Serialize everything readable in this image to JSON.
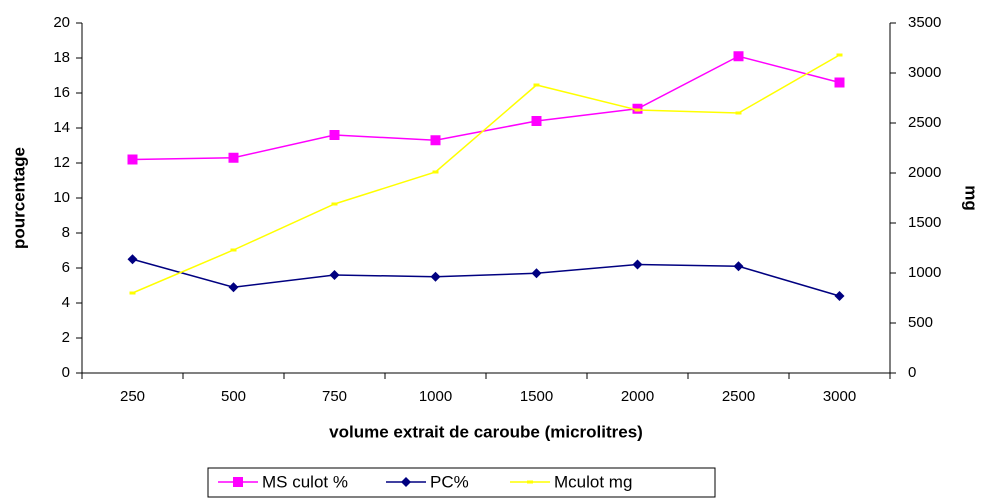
{
  "chart_data": {
    "type": "line",
    "x_label": "volume extrait de caroube (microlitres)",
    "y_label": "pourcentage",
    "y2_label": "mg",
    "categories": [
      "250",
      "500",
      "750",
      "1000",
      "1500",
      "2000",
      "2500",
      "3000"
    ],
    "series": [
      {
        "name": "MS culot %",
        "color": "#ff00ff",
        "marker": "square",
        "values": [
          12.2,
          12.3,
          13.6,
          13.3,
          14.4,
          15.1,
          18.1,
          16.6
        ]
      },
      {
        "name": "PC%",
        "color": "#000080",
        "marker": "diamond",
        "values": [
          6.5,
          4.9,
          5.6,
          5.5,
          5.7,
          6.2,
          6.1,
          4.4
        ]
      },
      {
        "name": "Mculot mg",
        "color": "#ffff00",
        "marker": "dash",
        "axis": "y2",
        "values": [
          800,
          1230,
          1690,
          2010,
          2880,
          2630,
          2600,
          3180
        ]
      }
    ],
    "ylim": [
      0,
      20
    ],
    "yticks": [
      0,
      2,
      4,
      6,
      8,
      10,
      12,
      14,
      16,
      18,
      20
    ],
    "y2lim": [
      0,
      3500
    ],
    "y2ticks": [
      0,
      500,
      1000,
      1500,
      2000,
      2500,
      3000,
      3500
    ],
    "legend": "bottom"
  }
}
